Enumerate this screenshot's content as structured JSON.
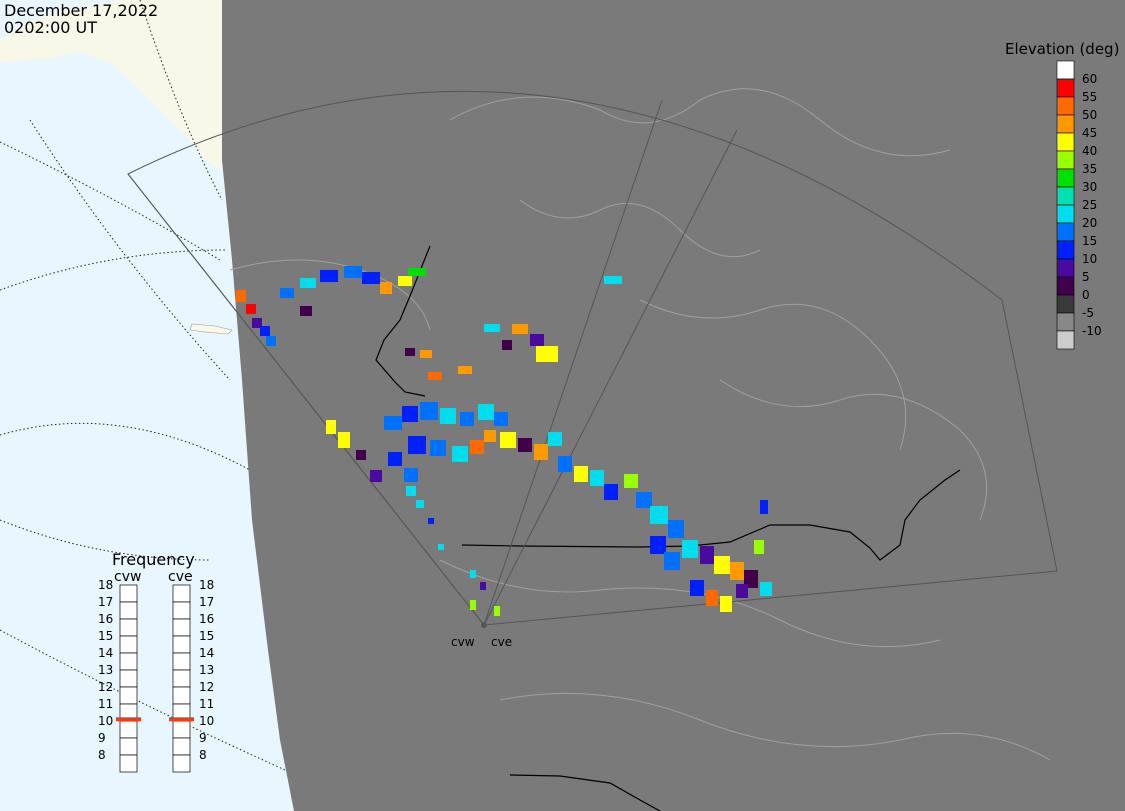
{
  "title": {
    "date": "December 17,2022",
    "time": "0202:00 UT"
  },
  "legend": {
    "title": "Elevation (deg)",
    "items": [
      {
        "label": "60",
        "color": "#ffffff"
      },
      {
        "label": "55",
        "color": "#ff0000"
      },
      {
        "label": "50",
        "color": "#ff6a00"
      },
      {
        "label": "45",
        "color": "#ff9900"
      },
      {
        "label": "40",
        "color": "#ffff00"
      },
      {
        "label": "35",
        "color": "#99ff00"
      },
      {
        "label": "30",
        "color": "#00e000"
      },
      {
        "label": "25",
        "color": "#00e0b0"
      },
      {
        "label": "20",
        "color": "#00ddee"
      },
      {
        "label": "15",
        "color": "#0070ff"
      },
      {
        "label": "10",
        "color": "#0020ff"
      },
      {
        "label": "5",
        "color": "#4a0aa0"
      },
      {
        "label": "0",
        "color": "#40004a"
      },
      {
        "label": "-5",
        "color": "#3a3a3a"
      },
      {
        "label": "-10",
        "color": "#888888"
      },
      {
        "label": "",
        "color": "#cccccc"
      }
    ]
  },
  "frequency": {
    "title": "Frequency",
    "radars": [
      {
        "name": "cvw",
        "value_mhz": 10.6
      },
      {
        "name": "cve",
        "value_mhz": 10.6
      }
    ],
    "ticks": [
      "18",
      "17",
      "16",
      "15",
      "14",
      "13",
      "12",
      "11",
      "10",
      "9",
      "8"
    ],
    "indicator_color": "#e8401a"
  },
  "sites": [
    {
      "name": "cvw"
    },
    {
      "name": "cve"
    }
  ],
  "map_colors": {
    "ocean": "#e8f6ff",
    "land_outside": "#f8f8e8",
    "night": "#7a7a7a",
    "coast": "#a0a0a0"
  }
}
